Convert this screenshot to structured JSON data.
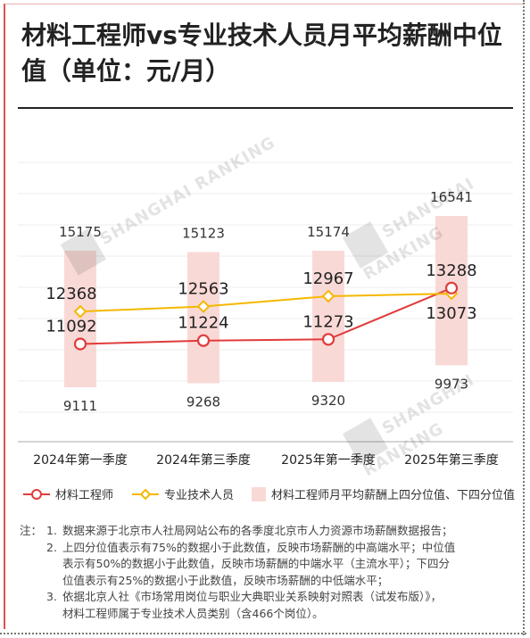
{
  "title": "材料工程师vs专业技术人员月平均薪酬中位值（单位：元/月）",
  "watermark": "SHANGHAI RANKING",
  "colors": {
    "engineer": "#e03c3c",
    "professional": "#f5b800",
    "band": "#f9d9d6"
  },
  "chart_data": {
    "type": "line",
    "categories": [
      "2024年第一季度",
      "2024年第三季度",
      "2025年第一季度",
      "2025年第三季度"
    ],
    "series": [
      {
        "name": "材料工程师",
        "values": [
          11092,
          11224,
          11273,
          13288
        ],
        "color": "#e03c3c",
        "marker": "circle"
      },
      {
        "name": "专业技术人员",
        "values": [
          12368,
          12563,
          12967,
          13073
        ],
        "color": "#f5b800",
        "marker": "diamond"
      }
    ],
    "band": {
      "name": "材料工程师月平均薪酬上四分位值、下四分位值",
      "upper": [
        15175,
        15123,
        15174,
        16541
      ],
      "lower": [
        9111,
        9268,
        9320,
        9973
      ]
    },
    "grid": "horizontal",
    "legend": "bottom"
  },
  "notes": {
    "label": "注：",
    "items": [
      {
        "num": "1.",
        "lines": [
          "数据来源于北京市人社局网站公布的各季度北京市人力资源市场薪酬数据报告；"
        ]
      },
      {
        "num": "2.",
        "lines": [
          "上四分位值表示有75%的数据小于此数值，反映市场薪酬的中高端水平；中位值",
          "表示有50%的数据小于此数值，反映市场薪酬的中端水平（主流水平）；下四分",
          "位值表示有25%的数据小于此数值，反映市场薪酬的中低端水平；"
        ]
      },
      {
        "num": "3.",
        "lines": [
          "依据北京人社《市场常用岗位与职业大典职业关系映射对照表（试发布版）》，",
          "材料工程师属于专业技术人员类别（含466个岗位）。"
        ]
      }
    ]
  }
}
